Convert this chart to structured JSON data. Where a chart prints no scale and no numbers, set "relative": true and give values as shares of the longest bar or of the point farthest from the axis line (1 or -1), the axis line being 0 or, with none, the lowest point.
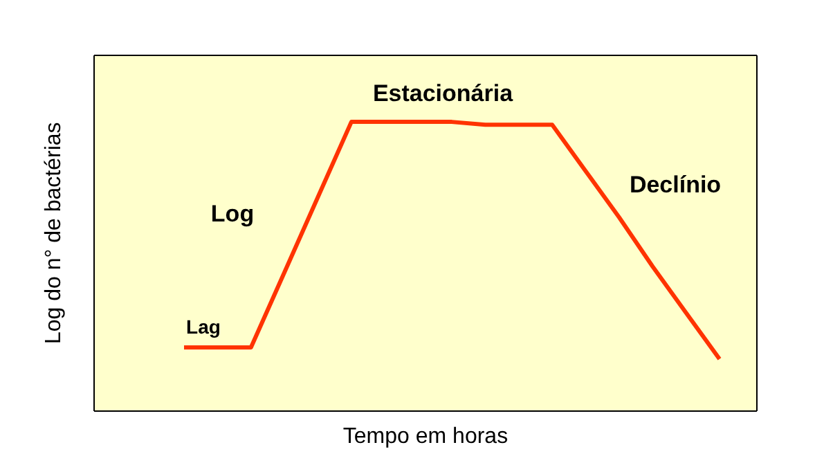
{
  "chart_data": {
    "type": "line",
    "relative": true,
    "xlabel": "Tempo em horas",
    "ylabel": "Log do n° de bactérias",
    "categories": [
      null,
      null,
      null,
      null,
      null,
      null,
      null,
      null,
      null,
      null,
      null,
      null,
      null,
      null,
      null,
      null,
      null
    ],
    "marker": "none",
    "line_style": "solid",
    "series": [
      {
        "color": "#ff3300",
        "values": [
          0.22,
          0.22,
          0.22,
          0.48,
          0.74,
          1,
          1,
          1,
          1,
          0.99,
          0.99,
          0.99,
          0.83,
          0.67,
          0.5,
          0.34,
          0.18
        ]
      }
    ],
    "annotations": [
      "Lag",
      "Log",
      "Estacionária",
      "Declínio"
    ]
  }
}
